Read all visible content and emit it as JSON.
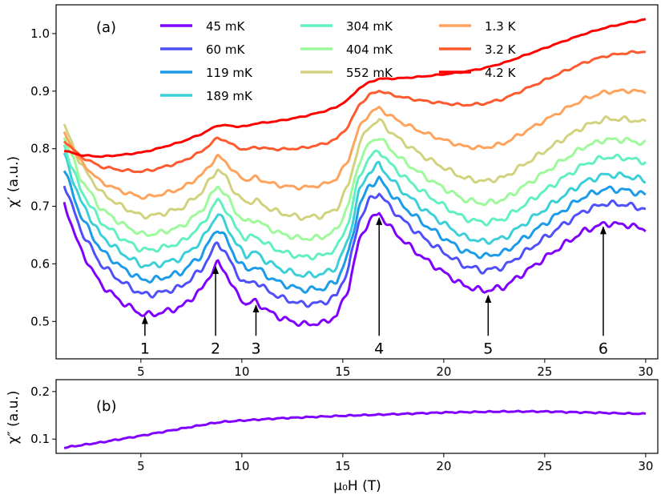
{
  "chart_data": [
    {
      "id": "a",
      "type": "line",
      "panel_label": "(a)",
      "ylabel": "χ′ (a.u.)",
      "xlim": [
        0.8,
        30.6
      ],
      "ylim": [
        0.435,
        1.05
      ],
      "xticks": [
        5,
        10,
        15,
        20,
        25,
        30
      ],
      "yticks": [
        0.5,
        0.6,
        0.7,
        0.8,
        0.9,
        1.0
      ],
      "ytick_labels": [
        "0.5",
        "0.6",
        "0.7",
        "0.8",
        "0.9",
        "1.0"
      ],
      "legend": {
        "placement": "top",
        "columns": 3
      },
      "base_curve": {
        "x": [
          1.2,
          2,
          3,
          4,
          5,
          5.5,
          6,
          7,
          8,
          8.5,
          8.8,
          9.2,
          9.7,
          10.2,
          10.7,
          11.2,
          12,
          13,
          14,
          14.7,
          15.3,
          15.8,
          16.3,
          16.8,
          17.3,
          18,
          19,
          20,
          21,
          22,
          23,
          24,
          25,
          26,
          27,
          28,
          29,
          30
        ],
        "y": [
          0.705,
          0.625,
          0.565,
          0.535,
          0.513,
          0.512,
          0.515,
          0.525,
          0.555,
          0.585,
          0.602,
          0.585,
          0.55,
          0.53,
          0.535,
          0.52,
          0.505,
          0.495,
          0.497,
          0.51,
          0.56,
          0.64,
          0.675,
          0.688,
          0.665,
          0.64,
          0.61,
          0.585,
          0.562,
          0.553,
          0.56,
          0.585,
          0.61,
          0.635,
          0.658,
          0.67,
          0.668,
          0.66
        ]
      },
      "series": [
        {
          "name": "45 mK",
          "color": "#8000ff",
          "offset": 0,
          "damp": 1.0
        },
        {
          "name": "60 mK",
          "color": "#4f4ffb",
          "offset": 0.035,
          "damp": 1.0
        },
        {
          "name": "119 mK",
          "color": "#1c9be8",
          "offset": 0.06,
          "damp": 1.0
        },
        {
          "name": "189 mK",
          "color": "#3ccfd8",
          "offset": 0.085,
          "damp": 1.0
        },
        {
          "name": "304 mK",
          "color": "#62f0c0",
          "offset": 0.11,
          "damp": 0.95
        },
        {
          "name": "404 mK",
          "color": "#9dfa9a",
          "offset": 0.135,
          "damp": 0.9
        },
        {
          "name": "552 mK",
          "color": "#d2d27e",
          "offset": 0.165,
          "damp": 0.85
        },
        {
          "name": "1.3 K",
          "color": "#ffa35c",
          "offset": 0.19,
          "damp": 0.65
        },
        {
          "name": "3.2 K",
          "color": "#ff5a2e",
          "offset": 0.225,
          "damp": 0.4
        },
        {
          "name": "4.2 K",
          "color": "#ff0000",
          "offset": 0.25,
          "damp": 0.18
        }
      ],
      "annotations": [
        {
          "label": "1",
          "x": 5.2,
          "y_tip": 0.508,
          "y_tail": 0.475
        },
        {
          "label": "2",
          "x": 8.7,
          "y_tip": 0.595,
          "y_tail": 0.475
        },
        {
          "label": "3",
          "x": 10.7,
          "y_tip": 0.528,
          "y_tail": 0.475
        },
        {
          "label": "4",
          "x": 16.8,
          "y_tip": 0.68,
          "y_tail": 0.475
        },
        {
          "label": "5",
          "x": 22.2,
          "y_tip": 0.545,
          "y_tail": 0.475
        },
        {
          "label": "6",
          "x": 27.9,
          "y_tip": 0.664,
          "y_tail": 0.475
        }
      ]
    },
    {
      "id": "b",
      "type": "line",
      "panel_label": "(b)",
      "xlabel": "μ₀H (T)",
      "ylabel": "χ″ (a.u.)",
      "xlim": [
        0.8,
        30.6
      ],
      "ylim": [
        0.07,
        0.225
      ],
      "xticks": [
        5,
        10,
        15,
        20,
        25,
        30
      ],
      "yticks": [
        0.1,
        0.2
      ],
      "ytick_labels": [
        "0.1",
        "0.2"
      ],
      "series": [
        {
          "name": "45 mK",
          "color": "#8000ff",
          "x": [
            1.2,
            3,
            5,
            7,
            8.5,
            9,
            10,
            12,
            15,
            18,
            20,
            23,
            25,
            27,
            29,
            30
          ],
          "y": [
            0.082,
            0.093,
            0.107,
            0.122,
            0.133,
            0.136,
            0.139,
            0.144,
            0.149,
            0.153,
            0.156,
            0.158,
            0.158,
            0.156,
            0.154,
            0.153
          ]
        }
      ]
    }
  ]
}
